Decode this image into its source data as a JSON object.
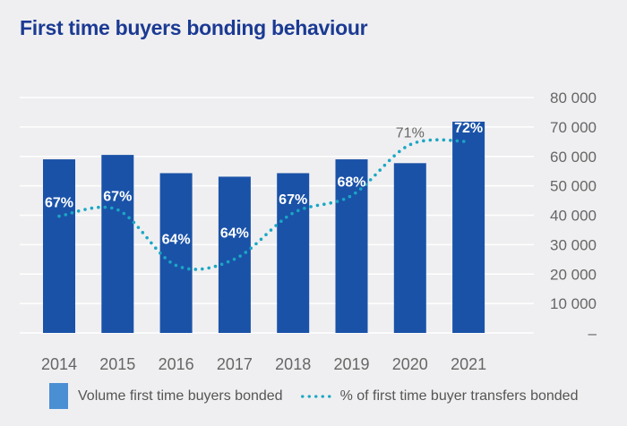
{
  "title": "First time buyers bonding behaviour",
  "chart_data": {
    "type": "bar",
    "title": "First time buyers bonding behaviour",
    "categories": [
      "2014",
      "2015",
      "2016",
      "2017",
      "2018",
      "2019",
      "2020",
      "2021"
    ],
    "series": [
      {
        "name": "Volume first time buyers bonded",
        "type": "bar",
        "axis": "right",
        "color": "#1a52a8",
        "legend_color": "#4a8fd4",
        "values": [
          59000,
          60500,
          54300,
          53100,
          54300,
          59000,
          57700,
          71800
        ]
      },
      {
        "name": "% of first time buyer transfers bonded",
        "type": "line",
        "style": "dotted",
        "color": "#1aa7c4",
        "values": [
          66.9,
          67.3,
          63.8,
          64.2,
          67.1,
          68.2,
          71.4,
          71.6
        ],
        "labels": [
          "67%",
          "67%",
          "64%",
          "64%",
          "67%",
          "68%",
          "71%",
          "72%"
        ]
      }
    ],
    "y_axis": {
      "position": "right",
      "range": [
        0,
        80000
      ],
      "tick_labels": [
        "–",
        "10 000",
        "20 000",
        "30 000",
        "40 000",
        "50 000",
        "60 000",
        "70 000",
        "80 000"
      ]
    },
    "grid": true,
    "legend": "bottom"
  }
}
